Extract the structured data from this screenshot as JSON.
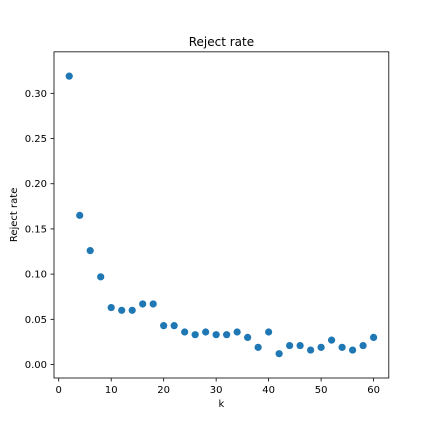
{
  "chart_data": {
    "type": "scatter",
    "title": "Reject rate",
    "xlabel": "k",
    "ylabel": "Reject rate",
    "xlim": [
      -0.9,
      62.9
    ],
    "ylim": [
      -0.0149,
      0.3459
    ],
    "xticks": [
      0,
      10,
      20,
      30,
      40,
      50,
      60
    ],
    "xtick_labels": [
      "0",
      "10",
      "20",
      "30",
      "40",
      "50",
      "60"
    ],
    "yticks": [
      0.0,
      0.05,
      0.1,
      0.15,
      0.2,
      0.25,
      0.3
    ],
    "ytick_labels": [
      "0.00",
      "0.05",
      "0.10",
      "0.15",
      "0.20",
      "0.25",
      "0.30"
    ],
    "grid": false,
    "marker_color": "#1f77b4",
    "x": [
      2,
      4,
      6,
      8,
      10,
      12,
      14,
      16,
      18,
      20,
      22,
      24,
      26,
      28,
      30,
      32,
      34,
      36,
      38,
      40,
      42,
      44,
      46,
      48,
      50,
      52,
      54,
      56,
      58,
      60
    ],
    "y": [
      0.319,
      0.165,
      0.126,
      0.097,
      0.063,
      0.06,
      0.06,
      0.067,
      0.067,
      0.043,
      0.043,
      0.036,
      0.033,
      0.036,
      0.033,
      0.033,
      0.036,
      0.03,
      0.019,
      0.036,
      0.012,
      0.021,
      0.021,
      0.016,
      0.019,
      0.027,
      0.019,
      0.016,
      0.021,
      0.03
    ]
  }
}
